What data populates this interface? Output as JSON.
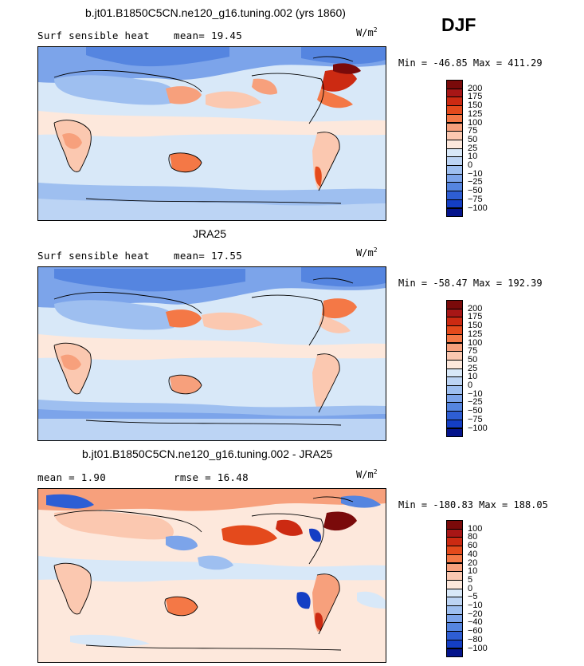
{
  "season": "DJF",
  "panels": [
    {
      "title": "b.jt01.B1850C5CN.ne120_g16.tuning.002 (yrs 1860)",
      "left_text": "Surf sensible heat",
      "stat_text": "mean=  19.45",
      "units": "W/m",
      "units_sup": "2",
      "minmax": "Min = -46.85 Max = 411.29",
      "legend": {
        "labels": [
          "200",
          "175",
          "150",
          "125",
          "100",
          "75",
          "50",
          "25",
          "10",
          "0",
          "−10",
          "−25",
          "−50",
          "−75",
          "−100"
        ],
        "colors": [
          "#7a0a0a",
          "#a81616",
          "#cc2a12",
          "#e44a1c",
          "#f47846",
          "#f7a07c",
          "#fbc8b0",
          "#fde8dc",
          "#d8e8f8",
          "#bcd4f4",
          "#9ebff0",
          "#7ca4ea",
          "#5585e0",
          "#2e5ed4",
          "#143ec4",
          "#04148c"
        ]
      },
      "chart_data": {
        "type": "heatmap",
        "title": "b.jt01.B1850C5CN.ne120_g16.tuning.002 (yrs 1860)",
        "field": "Surf sensible heat",
        "units": "W/m2",
        "season": "DJF",
        "mean": 19.45,
        "min": -46.85,
        "max": 411.29,
        "contour_levels": [
          -100,
          -75,
          -50,
          -25,
          -10,
          0,
          10,
          25,
          50,
          75,
          100,
          125,
          150,
          175,
          200
        ]
      }
    },
    {
      "title": "JRA25",
      "left_text": "Surf sensible heat",
      "stat_text": "mean=  17.55",
      "units": "W/m",
      "units_sup": "2",
      "minmax": "Min = -58.47 Max = 192.39",
      "legend": {
        "labels": [
          "200",
          "175",
          "150",
          "125",
          "100",
          "75",
          "50",
          "25",
          "10",
          "0",
          "−10",
          "−25",
          "−50",
          "−75",
          "−100"
        ],
        "colors": [
          "#7a0a0a",
          "#a81616",
          "#cc2a12",
          "#e44a1c",
          "#f47846",
          "#f7a07c",
          "#fbc8b0",
          "#fde8dc",
          "#d8e8f8",
          "#bcd4f4",
          "#9ebff0",
          "#7ca4ea",
          "#5585e0",
          "#2e5ed4",
          "#143ec4",
          "#04148c"
        ]
      },
      "chart_data": {
        "type": "heatmap",
        "title": "JRA25",
        "field": "Surf sensible heat",
        "units": "W/m2",
        "season": "DJF",
        "mean": 17.55,
        "min": -58.47,
        "max": 192.39,
        "contour_levels": [
          -100,
          -75,
          -50,
          -25,
          -10,
          0,
          10,
          25,
          50,
          75,
          100,
          125,
          150,
          175,
          200
        ]
      }
    },
    {
      "title": "b.jt01.B1850C5CN.ne120_g16.tuning.002 - JRA25",
      "left_text": "mean =   1.90",
      "stat_text": "rmse =  16.48",
      "units": "W/m",
      "units_sup": "2",
      "minmax": "Min = -180.83 Max = 188.05",
      "legend": {
        "labels": [
          "100",
          "80",
          "60",
          "40",
          "20",
          "10",
          "5",
          "0",
          "−5",
          "−10",
          "−20",
          "−40",
          "−60",
          "−80",
          "−100"
        ],
        "colors": [
          "#7a0a0a",
          "#a81616",
          "#cc2a12",
          "#e44a1c",
          "#f47846",
          "#f7a07c",
          "#fbc8b0",
          "#fde8dc",
          "#d8e8f8",
          "#bcd4f4",
          "#9ebff0",
          "#7ca4ea",
          "#5585e0",
          "#2e5ed4",
          "#143ec4",
          "#04148c"
        ]
      },
      "chart_data": {
        "type": "heatmap",
        "title": "b.jt01.B1850C5CN.ne120_g16.tuning.002 - JRA25",
        "field": "Surf sensible heat difference",
        "units": "W/m2",
        "season": "DJF",
        "mean": 1.9,
        "rmse": 16.48,
        "min": -180.83,
        "max": 188.05,
        "contour_levels": [
          -100,
          -80,
          -60,
          -40,
          -20,
          -10,
          -5,
          0,
          5,
          10,
          20,
          40,
          60,
          80,
          100
        ]
      }
    }
  ]
}
